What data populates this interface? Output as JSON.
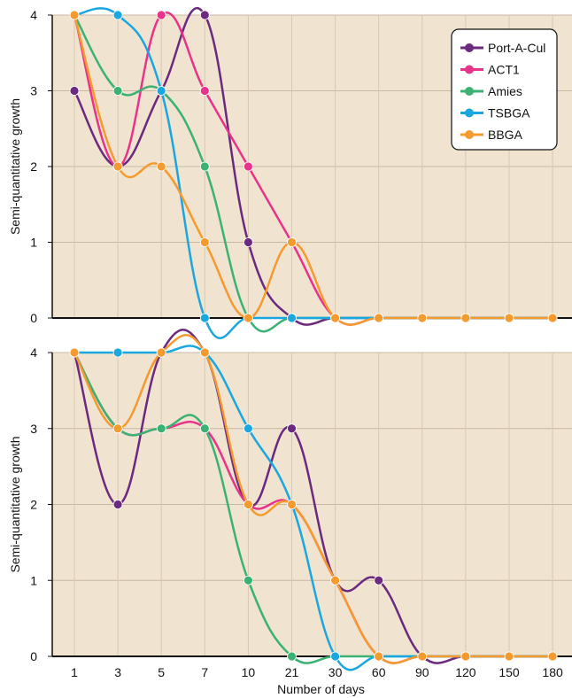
{
  "chart_data": [
    {
      "type": "line",
      "title": "",
      "xlabel": "",
      "ylabel": "Semi-quantitative growth",
      "categories": [
        "1",
        "3",
        "5",
        "7",
        "10",
        "21",
        "30",
        "60",
        "90",
        "120",
        "150",
        "180"
      ],
      "ylim": [
        0,
        4
      ],
      "y_ticks": [
        "0",
        "1",
        "2",
        "3",
        "4"
      ],
      "grid": true,
      "background": "#f0e3cf",
      "legend_position": "top-right",
      "series": [
        {
          "name": "Port-A-Cul",
          "color": "#6b2a7e",
          "values": [
            3,
            2,
            3,
            4,
            1,
            0,
            0,
            0,
            0,
            0,
            0,
            0
          ]
        },
        {
          "name": "ACT1",
          "color": "#e8338a",
          "values": [
            4,
            2,
            4,
            3,
            2,
            1,
            0,
            0,
            0,
            0,
            0,
            0
          ]
        },
        {
          "name": "Amies",
          "color": "#3bb273",
          "values": [
            4,
            3,
            3,
            2,
            0,
            0,
            0,
            0,
            0,
            0,
            0,
            0
          ]
        },
        {
          "name": "TSBGA",
          "color": "#1aa7e0",
          "values": [
            4,
            4,
            3,
            0,
            0,
            0,
            0,
            0,
            0,
            0,
            0,
            0
          ]
        },
        {
          "name": "BBGA",
          "color": "#f59a2e",
          "values": [
            4,
            2,
            2,
            1,
            0,
            1,
            0,
            0,
            0,
            0,
            0,
            0
          ]
        }
      ]
    },
    {
      "type": "line",
      "title": "",
      "xlabel": "Number of days",
      "ylabel": "Semi-quantitative growth",
      "categories": [
        "1",
        "3",
        "5",
        "7",
        "10",
        "21",
        "30",
        "60",
        "90",
        "120",
        "150",
        "180"
      ],
      "ylim": [
        0,
        4
      ],
      "y_ticks": [
        "0",
        "1",
        "2",
        "3",
        "4"
      ],
      "grid": true,
      "background": "#f0e3cf",
      "legend_position": "none",
      "series": [
        {
          "name": "Port-A-Cul",
          "color": "#6b2a7e",
          "values": [
            4,
            2,
            4,
            4,
            2,
            3,
            1,
            1,
            0,
            0,
            0,
            0
          ]
        },
        {
          "name": "ACT1",
          "color": "#e8338a",
          "values": [
            4,
            3,
            3,
            3,
            2,
            2,
            1,
            0,
            0,
            0,
            0,
            0
          ]
        },
        {
          "name": "Amies",
          "color": "#3bb273",
          "values": [
            4,
            3,
            3,
            3,
            1,
            0,
            0,
            0,
            0,
            0,
            0,
            0
          ]
        },
        {
          "name": "TSBGA",
          "color": "#1aa7e0",
          "values": [
            4,
            4,
            4,
            4,
            3,
            2,
            0,
            0,
            0,
            0,
            0,
            0
          ]
        },
        {
          "name": "BBGA",
          "color": "#f59a2e",
          "values": [
            4,
            3,
            4,
            4,
            2,
            2,
            1,
            0,
            0,
            0,
            0,
            0
          ]
        }
      ]
    }
  ]
}
